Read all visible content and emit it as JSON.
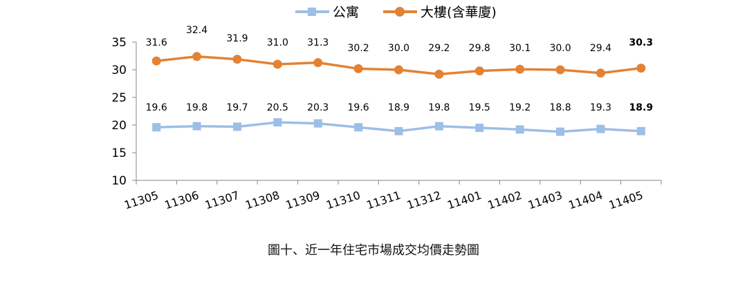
{
  "chart_data": {
    "type": "line",
    "categories": [
      "11305",
      "11306",
      "11307",
      "11308",
      "11309",
      "11310",
      "11311",
      "11312",
      "11401",
      "11402",
      "11403",
      "11404",
      "11405"
    ],
    "series": [
      {
        "name": "公寓",
        "color": "#9DBEE6",
        "marker": "square",
        "values": [
          19.6,
          19.8,
          19.7,
          20.5,
          20.3,
          19.6,
          18.9,
          19.8,
          19.5,
          19.2,
          18.8,
          19.3,
          18.9
        ],
        "labels": [
          "19.6",
          "19.8",
          "19.7",
          "20.5",
          "20.3",
          "19.6",
          "18.9",
          "19.8",
          "19.5",
          "19.2",
          "18.8",
          "19.3",
          "18.9"
        ]
      },
      {
        "name": "大樓(含華廈)",
        "color": "#E38233",
        "marker": "circle",
        "values": [
          31.6,
          32.4,
          31.9,
          31.0,
          31.3,
          30.2,
          30.0,
          29.2,
          29.8,
          30.1,
          30.0,
          29.4,
          30.3
        ],
        "labels": [
          "31.6",
          "32.4",
          "31.9",
          "31.0",
          "31.3",
          "30.2",
          "30.0",
          "29.2",
          "29.8",
          "30.1",
          "30.0",
          "29.4",
          "30.3"
        ]
      }
    ],
    "ylim": [
      10,
      35
    ],
    "yticks": [
      10,
      15,
      20,
      25,
      30,
      35
    ],
    "legend": "top-center",
    "grid": false,
    "last_label_bold": true
  },
  "caption": "圖十、近一年住宅市場成交均價走勢圖"
}
